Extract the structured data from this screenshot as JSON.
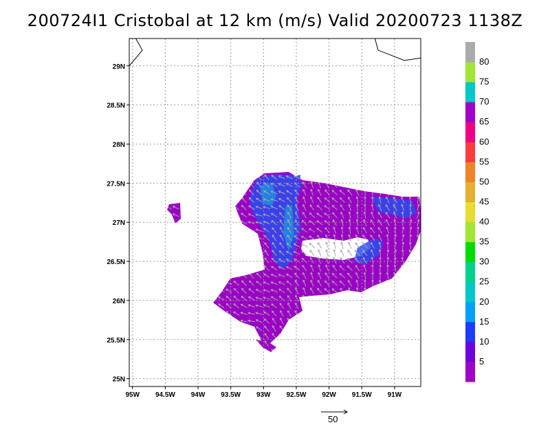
{
  "title": "200724I1 Cristobal at 12 km (m/s) Valid 20200723 1138Z",
  "map": {
    "lon_range": [
      -95.05,
      -90.6
    ],
    "lat_range": [
      24.9,
      29.35
    ],
    "lon_ticks": [
      {
        "value": -95.0,
        "label": "95W"
      },
      {
        "value": -94.5,
        "label": "94.5W"
      },
      {
        "value": -94.0,
        "label": "94W"
      },
      {
        "value": -93.5,
        "label": "93.5W"
      },
      {
        "value": -93.0,
        "label": "93W"
      },
      {
        "value": -92.5,
        "label": "92.5W"
      },
      {
        "value": -92.0,
        "label": "92W"
      },
      {
        "value": -91.5,
        "label": "91.5W"
      },
      {
        "value": -91.0,
        "label": "91W"
      }
    ],
    "lat_ticks": [
      {
        "value": 25.0,
        "label": "25N"
      },
      {
        "value": 25.5,
        "label": "25.5N"
      },
      {
        "value": 26.0,
        "label": "26N"
      },
      {
        "value": 26.5,
        "label": "26.5N"
      },
      {
        "value": 27.0,
        "label": "27N"
      },
      {
        "value": 27.5,
        "label": "27.5N"
      },
      {
        "value": 28.0,
        "label": "28N"
      },
      {
        "value": 28.5,
        "label": "28.5N"
      },
      {
        "value": 29.0,
        "label": "29N"
      }
    ],
    "grid": true,
    "coastlines": [
      [
        [
          -95.05,
          29.0
        ],
        [
          -94.85,
          29.2
        ],
        [
          -94.95,
          29.35
        ]
      ],
      [
        [
          -91.3,
          29.35
        ],
        [
          -91.25,
          29.2
        ],
        [
          -90.85,
          29.07
        ],
        [
          -90.6,
          29.1
        ]
      ]
    ]
  },
  "colorbar": {
    "levels": [
      {
        "label": "5",
        "color": "#a000c8"
      },
      {
        "label": "10",
        "color": "#6e00dc"
      },
      {
        "label": "15",
        "color": "#1e3cff"
      },
      {
        "label": "20",
        "color": "#00a0ff"
      },
      {
        "label": "25",
        "color": "#00c8c8"
      },
      {
        "label": "30",
        "color": "#00d28c"
      },
      {
        "label": "35",
        "color": "#00dc00"
      },
      {
        "label": "40",
        "color": "#a0e632"
      },
      {
        "label": "45",
        "color": "#e6dc32"
      },
      {
        "label": "50",
        "color": "#e6af2d"
      },
      {
        "label": "55",
        "color": "#f08228"
      },
      {
        "label": "60",
        "color": "#fa3c3c"
      },
      {
        "label": "65",
        "color": "#f00082"
      },
      {
        "label": "70",
        "color": "#a000c8"
      },
      {
        "label": "75",
        "color": "#00c8c8"
      },
      {
        "label": "80",
        "color": "#a0e632"
      },
      {
        "label": "",
        "color": "#aaaaaa"
      }
    ]
  },
  "reference_vector": {
    "label": "50"
  },
  "wind_field": {
    "fill_color": "#9a00c4",
    "strong_color": "#2a4cf0",
    "cyan_color": "#10b6d8",
    "arrow_color": "#aaaaaa"
  }
}
